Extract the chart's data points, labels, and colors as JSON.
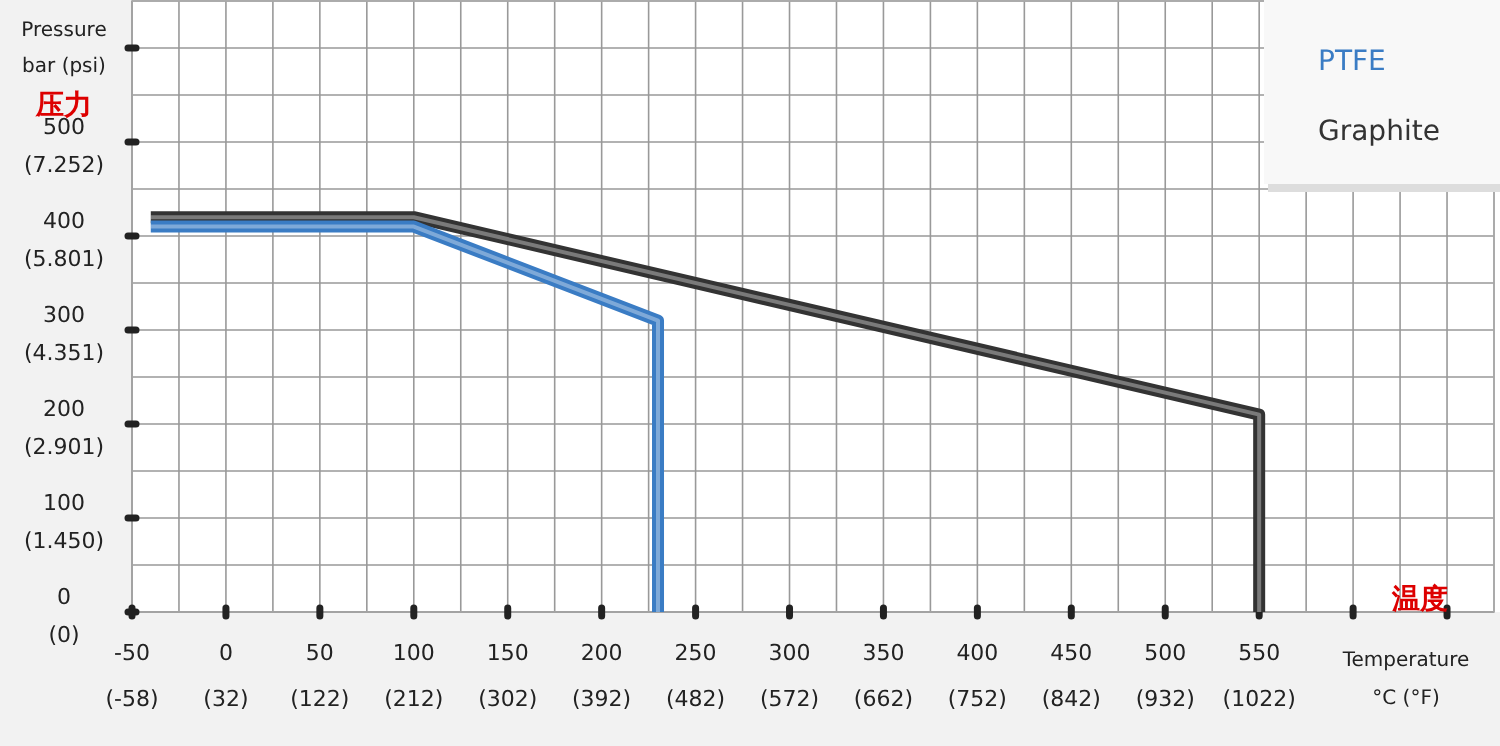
{
  "chart_data": {
    "type": "line",
    "xlabel": "Temperature\n°C (°F)",
    "annotations": [
      "压力",
      "温度",
      "Pressure\nbar (psi)"
    ],
    "xlim": [
      -50,
      675
    ],
    "ylim": [
      0,
      650
    ],
    "xticks": [
      -50,
      0,
      50,
      100,
      150,
      200,
      250,
      300,
      350,
      400,
      450,
      500,
      550,
      {
        "value": 600,
        "label": null
      },
      {
        "value": 650,
        "label": null
      }
    ],
    "x2lim": [
      -58,
      1247
    ],
    "x2ticks": [
      {
        "value": -58,
        "label": "(-58)"
      },
      {
        "value": 32,
        "label": "(32)"
      },
      {
        "value": 122,
        "label": "(122)"
      },
      {
        "value": 212,
        "label": "(212)"
      },
      {
        "value": 302,
        "label": "(302)"
      },
      {
        "value": 392,
        "label": "(392)"
      },
      {
        "value": 482,
        "label": "(482)"
      },
      {
        "value": 572,
        "label": "(572)"
      },
      {
        "value": 662,
        "label": "(662)"
      },
      {
        "value": 752,
        "label": "(752)"
      },
      {
        "value": 842,
        "label": "(842)"
      },
      {
        "value": 932,
        "label": "(932)"
      },
      {
        "value": 1022,
        "label": "(1022)"
      }
    ],
    "yticks": [
      0,
      100,
      200,
      300,
      400,
      500,
      {
        "value": 600,
        "label": null
      }
    ],
    "y2lim": [
      0,
      9427.5
    ],
    "y2ticks": [
      {
        "value": 0,
        "label": "(0)"
      },
      {
        "value": 1450,
        "label": "(1.450)"
      },
      {
        "value": 2901,
        "label": "(2.901)"
      },
      {
        "value": 4351,
        "label": "(4.351)"
      },
      {
        "value": 5801,
        "label": "(5.801)"
      },
      {
        "value": 7252,
        "label": "(7.252)"
      }
    ],
    "grid": true,
    "legend": "top right",
    "series": [
      {
        "name": "Graphite",
        "color": "#333333",
        "x": [
          -40,
          100,
          550,
          550
        ],
        "values": [
          420,
          420,
          210,
          0
        ]
      },
      {
        "name": "PTFE",
        "color": "#3a7cc4",
        "x": [
          -40,
          100,
          230,
          230
        ],
        "values": [
          410,
          410,
          310,
          0
        ]
      }
    ]
  }
}
